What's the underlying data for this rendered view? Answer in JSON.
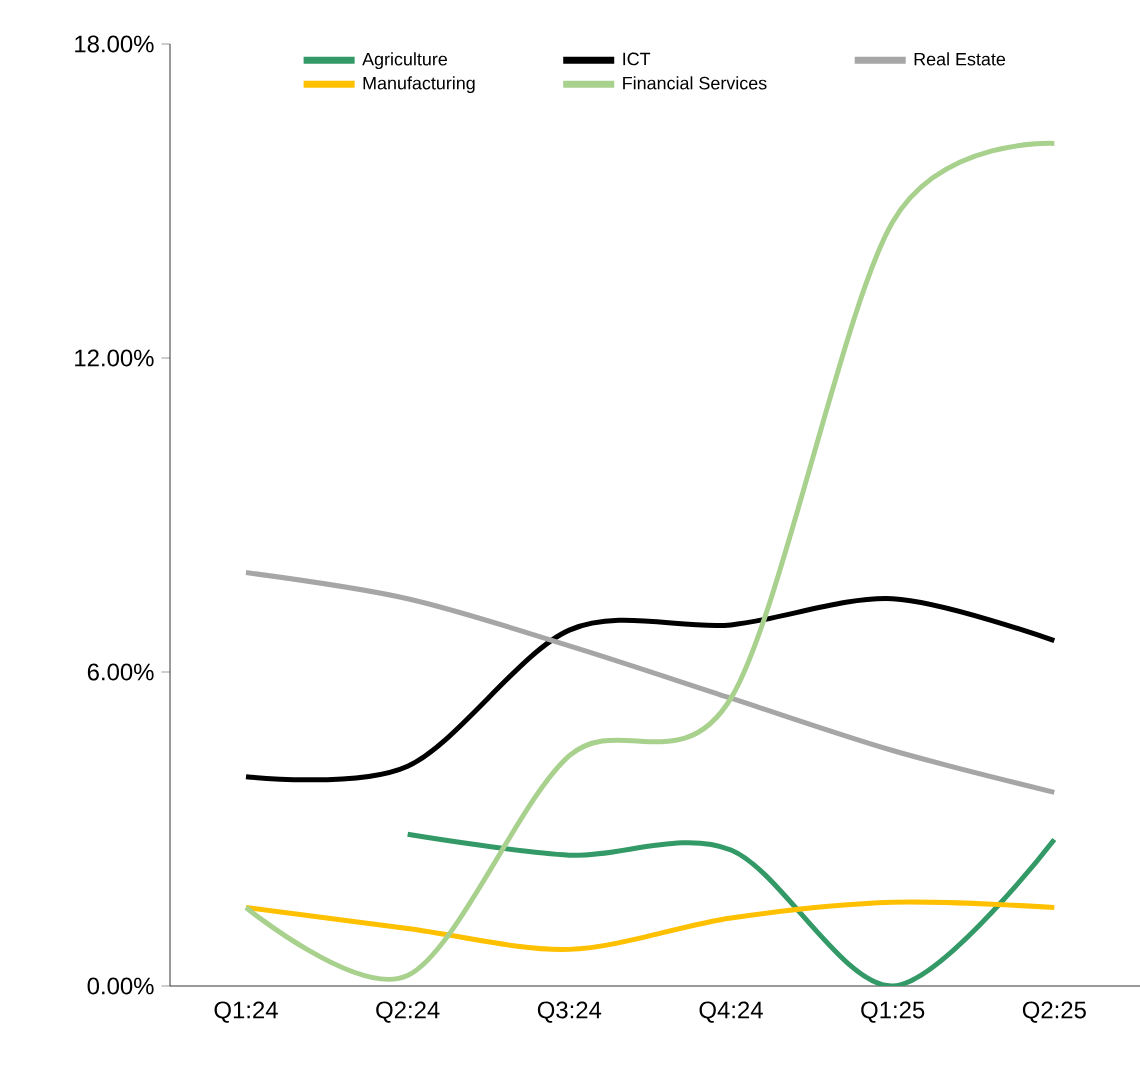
{
  "chart_data": {
    "type": "line",
    "categories": [
      "Q1:24",
      "Q2:24",
      "Q3:24",
      "Q4:24",
      "Q1:25",
      "Q2:25"
    ],
    "series": [
      {
        "name": "Agriculture",
        "color": "#339966",
        "values": [
          null,
          2.9,
          2.5,
          2.6,
          0.0,
          2.8
        ]
      },
      {
        "name": "ICT",
        "color": "#000000",
        "values": [
          4.0,
          4.2,
          6.8,
          6.9,
          7.4,
          6.6
        ]
      },
      {
        "name": "Real Estate",
        "color": "#a6a6a6",
        "values": [
          7.9,
          7.4,
          6.5,
          5.5,
          4.5,
          3.7
        ]
      },
      {
        "name": "Manufacturing",
        "color": "#ffc000",
        "values": [
          1.5,
          1.1,
          0.7,
          1.3,
          1.6,
          1.5
        ]
      },
      {
        "name": "Financial Services",
        "color": "#a9d18e",
        "values": [
          1.5,
          0.2,
          4.4,
          5.5,
          14.6,
          16.1
        ]
      }
    ],
    "ylim": [
      0,
      18
    ],
    "yticks": [
      {
        "value": 0,
        "label": "0.00%"
      },
      {
        "value": 6,
        "label": "6.00%"
      },
      {
        "value": 12,
        "label": "12.00%"
      },
      {
        "value": 18,
        "label": "18.00%"
      }
    ],
    "legend": "top",
    "grid": false,
    "marker": "none",
    "line_style": "solid"
  }
}
